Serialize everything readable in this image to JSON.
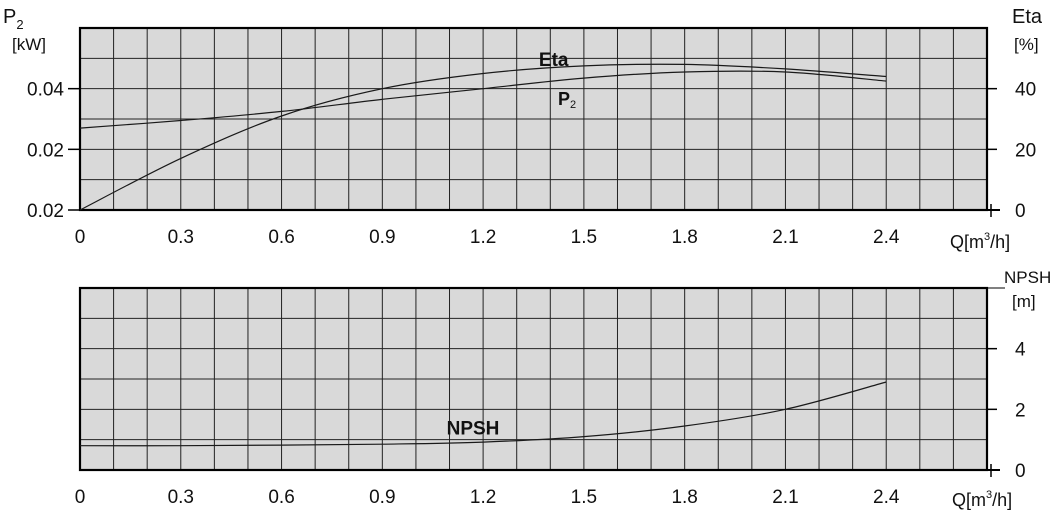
{
  "chart_data": [
    {
      "type": "line",
      "title": "",
      "xlabel": "Q[m3/h]",
      "ylabel_left": "P2 [kW]",
      "ylabel_right": "Eta [%]",
      "x_ticks": [
        "0",
        "0.3",
        "0.6",
        "0.9",
        "1.2",
        "1.5",
        "1.8",
        "2.1",
        "2.4"
      ],
      "y_left_ticks": [
        "0.02",
        "0.02",
        "0.04"
      ],
      "y_right_ticks": [
        "0",
        "20",
        "40"
      ],
      "xlim": [
        0,
        2.7
      ],
      "ylim_right": [
        0,
        60
      ],
      "grid": true,
      "background": "#d9d9d9",
      "series": [
        {
          "name": "Eta",
          "axis": "right",
          "label_q": 1.41,
          "x": [
            0,
            0.3,
            0.6,
            0.9,
            1.2,
            1.5,
            1.8,
            2.1,
            2.4
          ],
          "values": [
            0,
            17,
            31,
            40,
            45,
            47.5,
            48,
            46.5,
            44
          ]
        },
        {
          "name": "P2",
          "axis": "right",
          "label_q": 1.45,
          "x": [
            0,
            0.3,
            0.6,
            0.9,
            1.2,
            1.5,
            1.8,
            2.1,
            2.4
          ],
          "values": [
            27,
            29.5,
            32.5,
            36.5,
            40,
            43.5,
            45.5,
            45.5,
            42.5
          ]
        }
      ]
    },
    {
      "type": "line",
      "title": "",
      "xlabel": "Q[m3/h]",
      "ylabel_right": "NPSH [m]",
      "x_ticks": [
        "0",
        "0.3",
        "0.6",
        "0.9",
        "1.2",
        "1.5",
        "1.8",
        "2.1",
        "2.4"
      ],
      "y_right_ticks": [
        "0",
        "2",
        "4"
      ],
      "xlim": [
        0,
        2.7
      ],
      "ylim_right": [
        0,
        6
      ],
      "grid": true,
      "background": "#d9d9d9",
      "series": [
        {
          "name": "NPSH",
          "axis": "right",
          "label_q": 1.17,
          "x": [
            0,
            0.3,
            0.6,
            0.9,
            1.2,
            1.5,
            1.8,
            2.1,
            2.4
          ],
          "values": [
            0.8,
            0.8,
            0.82,
            0.85,
            0.92,
            1.1,
            1.45,
            2.0,
            2.9
          ]
        }
      ]
    }
  ],
  "labels": {
    "p2_main": "P",
    "p2_sub": "2",
    "p2_unit": "[kW]",
    "eta_main": "Eta",
    "eta_unit": "[%]",
    "q_pre": "Q[m",
    "q_sup": "3",
    "q_post": "/h]",
    "npsh_main": "NPSH",
    "npsh_unit": "[m]"
  }
}
